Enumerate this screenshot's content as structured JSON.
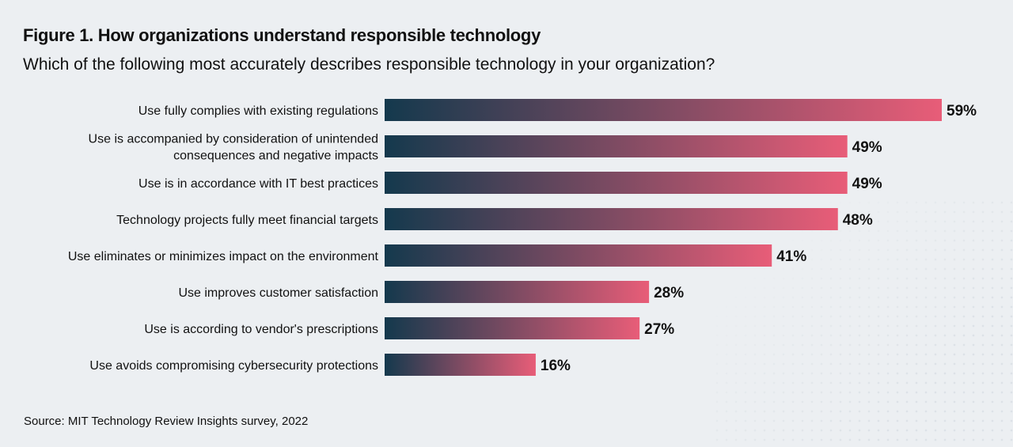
{
  "chart_data": {
    "type": "bar",
    "orientation": "horizontal",
    "title": "Figure 1. How organizations understand responsible technology",
    "subtitle": "Which of the following most accurately describes responsible technology in your organization?",
    "categories": [
      [
        "Use fully complies with existing regulations"
      ],
      [
        "Use is accompanied by consideration of unintended",
        "consequences and negative impacts"
      ],
      [
        "Use is in accordance with IT best practices"
      ],
      [
        "Technology projects fully meet financial targets"
      ],
      [
        "Use eliminates or minimizes impact on the environment"
      ],
      [
        "Use improves customer satisfaction"
      ],
      [
        "Use is according to vendor's prescriptions"
      ],
      [
        "Use avoids compromising cybersecurity protections"
      ]
    ],
    "values": [
      59,
      49,
      49,
      48,
      41,
      28,
      27,
      16
    ],
    "value_labels": [
      "59%",
      "49%",
      "49%",
      "48%",
      "41%",
      "28%",
      "27%",
      "16%"
    ],
    "unit": "%",
    "grid": false,
    "colors": {
      "gradient_start": "#14394d",
      "gradient_end": "#e85d78",
      "background": "#eceff2"
    },
    "source": "Source: MIT Technology Review Insights survey, 2022"
  }
}
